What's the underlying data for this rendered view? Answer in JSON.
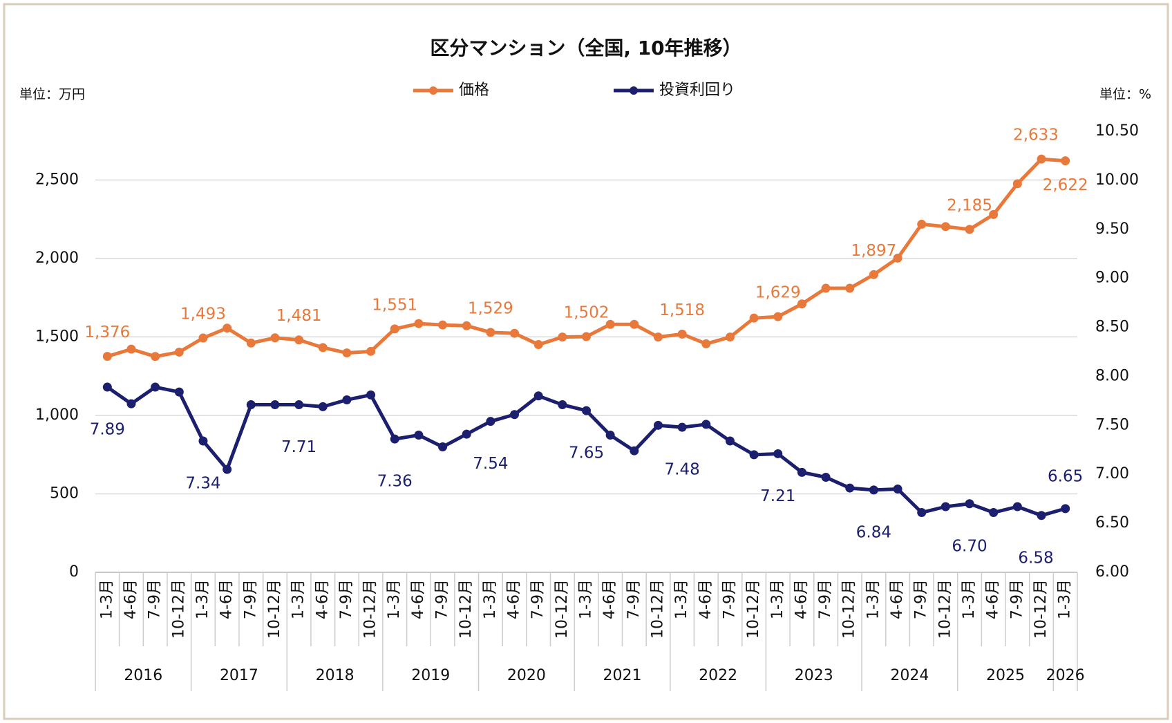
{
  "chart_data": {
    "type": "line",
    "title": "区分マンション（全国, 10年推移）",
    "y_unit": "単位：万円",
    "y2_unit": "単位：%",
    "categories": [
      "1-3月",
      "4-6月",
      "7-9月",
      "10-12月",
      "1-3月",
      "4-6月",
      "7-9月",
      "10-12月",
      "1-3月",
      "4-6月",
      "7-9月",
      "10-12月",
      "1-3月",
      "4-6月",
      "7-9月",
      "10-12月",
      "1-3月",
      "4-6月",
      "7-9月",
      "10-12月",
      "1-3月",
      "4-6月",
      "7-9月",
      "10-12月",
      "1-3月",
      "4-6月",
      "7-9月",
      "10-12月",
      "1-3月",
      "4-6月",
      "7-9月",
      "10-12月",
      "1-3月",
      "4-6月",
      "7-9月",
      "10-12月",
      "1-3月",
      "4-6月",
      "7-9月",
      "10-12月",
      "1-3月"
    ],
    "years": [
      "2016",
      "2017",
      "2018",
      "2019",
      "2020",
      "2021",
      "2022",
      "2023",
      "2024",
      "2025",
      "2026"
    ],
    "series": [
      {
        "name": "価格",
        "color": "#e8793a",
        "axis": "y",
        "values": [
          1376,
          1422,
          1375,
          1403,
          1493,
          1556,
          1461,
          1494,
          1481,
          1432,
          1398,
          1408,
          1551,
          1585,
          1576,
          1571,
          1529,
          1523,
          1451,
          1499,
          1502,
          1580,
          1580,
          1499,
          1518,
          1456,
          1499,
          1620,
          1629,
          1710,
          1810,
          1810,
          1897,
          2002,
          2218,
          2203,
          2185,
          2280,
          2476,
          2633,
          2622
        ],
        "value_labels": [
          "1,376",
          null,
          null,
          null,
          "1,493",
          null,
          null,
          null,
          "1,481",
          null,
          null,
          null,
          "1,551",
          null,
          null,
          null,
          "1,529",
          null,
          null,
          null,
          "1,502",
          null,
          null,
          null,
          "1,518",
          null,
          null,
          null,
          "1,629",
          null,
          null,
          null,
          "1,897",
          null,
          null,
          null,
          "2,185",
          null,
          null,
          "2,633",
          "2,622"
        ]
      },
      {
        "name": "投資利回り",
        "color": "#1b1f6e",
        "axis": "y2",
        "values": [
          7.89,
          7.72,
          7.89,
          7.84,
          7.34,
          7.05,
          7.71,
          7.71,
          7.71,
          7.69,
          7.76,
          7.81,
          7.36,
          7.4,
          7.28,
          7.41,
          7.54,
          7.61,
          7.8,
          7.71,
          7.65,
          7.4,
          7.24,
          7.5,
          7.48,
          7.51,
          7.34,
          7.2,
          7.21,
          7.02,
          6.97,
          6.86,
          6.84,
          6.85,
          6.61,
          6.67,
          6.7,
          6.61,
          6.67,
          6.58,
          6.65
        ],
        "value_labels": [
          "7.89",
          null,
          null,
          null,
          "7.34",
          null,
          null,
          null,
          "7.71",
          null,
          null,
          null,
          "7.36",
          null,
          null,
          null,
          "7.54",
          null,
          null,
          null,
          "7.65",
          null,
          null,
          null,
          "7.48",
          null,
          null,
          null,
          "7.21",
          null,
          null,
          null,
          "6.84",
          null,
          null,
          null,
          "6.70",
          null,
          null,
          "6.58",
          "6.65"
        ]
      }
    ],
    "ylim": [
      0,
      2810
    ],
    "yticks": [
      0,
      500,
      {
        "value": 1000,
        "label": "1,000"
      },
      {
        "value": 1500,
        "label": "1,500"
      },
      {
        "value": 2000,
        "label": "2,000"
      },
      {
        "value": 2500,
        "label": "2,500"
      }
    ],
    "y2lim": [
      6,
      10.5
    ],
    "y2ticks": [
      {
        "value": 6,
        "label": "6.00"
      },
      {
        "value": 6.5,
        "label": "6.50"
      },
      {
        "value": 7,
        "label": "7.00"
      },
      {
        "value": 7.5,
        "label": "7.50"
      },
      {
        "value": 8,
        "label": "8.00"
      },
      {
        "value": 8.5,
        "label": "8.50"
      },
      {
        "value": 9,
        "label": "9.00"
      },
      {
        "value": 9.5,
        "label": "9.50"
      },
      {
        "value": 10,
        "label": "10.00"
      },
      {
        "value": 10.5,
        "label": "10.50"
      }
    ],
    "grid": true
  }
}
